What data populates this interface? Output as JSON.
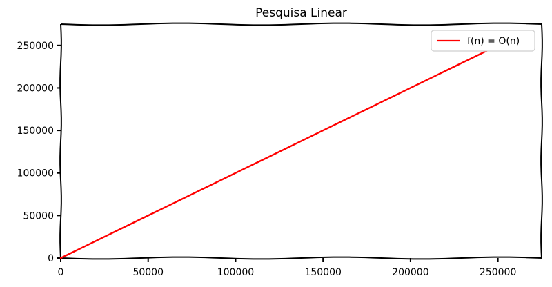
{
  "chart_data": {
    "type": "line",
    "title": "Pesquisa Linear",
    "xlabel": "",
    "ylabel": "",
    "xlim": [
      0,
      275000
    ],
    "ylim": [
      0,
      275000
    ],
    "xticks": [
      "0",
      "50000",
      "100000",
      "150000",
      "200000",
      "250000"
    ],
    "yticks": [
      "0",
      "50000",
      "100000",
      "150000",
      "200000",
      "250000"
    ],
    "xtick_values": [
      0,
      50000,
      100000,
      150000,
      200000,
      250000
    ],
    "ytick_values": [
      0,
      50000,
      100000,
      150000,
      200000,
      250000
    ],
    "grid": false,
    "legend_position": "top-right",
    "series": [
      {
        "name": "f(n) = O(n)",
        "color": "#ff0000",
        "x": [
          0,
          25000,
          50000,
          75000,
          100000,
          125000,
          150000,
          175000,
          200000,
          225000,
          250000
        ],
        "y": [
          0,
          25000,
          50000,
          75000,
          100000,
          125000,
          150000,
          175000,
          200000,
          225000,
          250000
        ]
      }
    ]
  }
}
